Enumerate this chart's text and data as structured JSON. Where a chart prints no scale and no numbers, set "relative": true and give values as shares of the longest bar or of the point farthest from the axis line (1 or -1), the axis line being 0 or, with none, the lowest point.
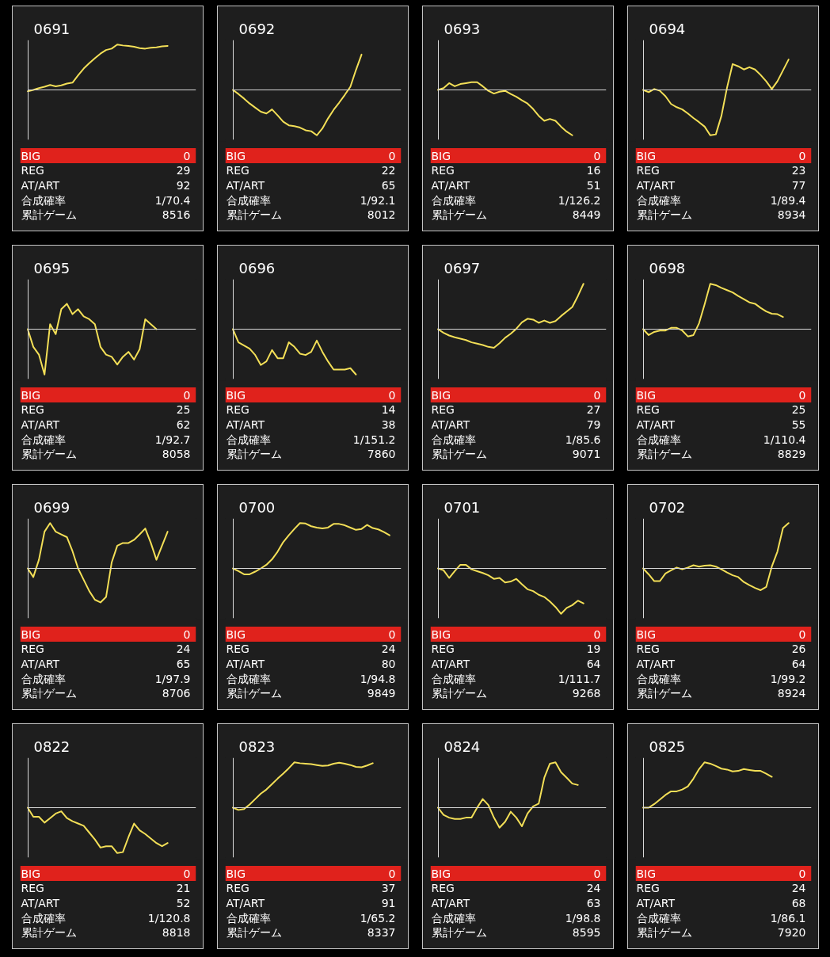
{
  "chart_data": [
    {
      "type": "line",
      "relative": true,
      "title": "0691",
      "categories": [
        null,
        null,
        null,
        null,
        null,
        null,
        null,
        null,
        null,
        null,
        null,
        null,
        null,
        null,
        null,
        null,
        null,
        null,
        null,
        null,
        null,
        null,
        null,
        null,
        null,
        null,
        null,
        null,
        null,
        null,
        null
      ],
      "series": [
        {
          "color": "#f3df57",
          "values": [
            -0.03,
            0,
            0.04,
            0.07,
            0.11,
            0.08,
            0.1,
            0.14,
            0.16,
            0.32,
            0.47,
            0.59,
            0.7,
            0.8,
            0.88,
            0.91,
            1,
            0.98,
            0.97,
            0.95,
            0.92,
            0.91,
            0.93,
            0.94,
            0.96,
            0.97,
            null,
            null,
            null,
            null,
            null
          ]
        }
      ],
      "annotations": [
        "BIG",
        "0",
        "REG",
        "29",
        "AT/ART",
        "92",
        "合成確率",
        "1/70.4",
        "累計ゲーム",
        "8516"
      ]
    },
    {
      "type": "line",
      "relative": true,
      "title": "0692",
      "categories": [
        null,
        null,
        null,
        null,
        null,
        null,
        null,
        null,
        null,
        null,
        null,
        null,
        null,
        null,
        null,
        null,
        null,
        null,
        null,
        null,
        null,
        null,
        null,
        null,
        null,
        null,
        null,
        null,
        null,
        null,
        null
      ],
      "series": [
        {
          "color": "#f3df57",
          "values": [
            0,
            -0.09,
            -0.19,
            -0.3,
            -0.39,
            -0.48,
            -0.52,
            -0.43,
            -0.56,
            -0.7,
            -0.78,
            -0.8,
            -0.83,
            -0.89,
            -0.91,
            -1,
            -0.85,
            -0.63,
            -0.44,
            -0.28,
            -0.11,
            0.07,
            0.44,
            0.78,
            null,
            null,
            null,
            null,
            null,
            null,
            null
          ]
        }
      ],
      "annotations": [
        "BIG",
        "0",
        "REG",
        "22",
        "AT/ART",
        "65",
        "合成確率",
        "1/92.1",
        "累計ゲーム",
        "8012"
      ]
    },
    {
      "type": "line",
      "relative": true,
      "title": "0693",
      "categories": [
        null,
        null,
        null,
        null,
        null,
        null,
        null,
        null,
        null,
        null,
        null,
        null,
        null,
        null,
        null,
        null,
        null,
        null,
        null,
        null,
        null,
        null,
        null,
        null,
        null,
        null,
        null,
        null,
        null,
        null,
        null
      ],
      "series": [
        {
          "color": "#f3df57",
          "values": [
            0,
            0.04,
            0.15,
            0.08,
            0.13,
            0.15,
            0.17,
            0.17,
            0.08,
            -0.02,
            -0.08,
            -0.04,
            -0.02,
            -0.09,
            -0.15,
            -0.23,
            -0.3,
            -0.42,
            -0.57,
            -0.68,
            -0.64,
            -0.68,
            -0.81,
            -0.92,
            -1,
            null,
            null,
            null,
            null,
            null,
            null
          ]
        }
      ],
      "annotations": [
        "BIG",
        "0",
        "REG",
        "16",
        "AT/ART",
        "51",
        "合成確率",
        "1/126.2",
        "累計ゲーム",
        "8449"
      ]
    },
    {
      "type": "line",
      "relative": true,
      "title": "0694",
      "categories": [
        null,
        null,
        null,
        null,
        null,
        null,
        null,
        null,
        null,
        null,
        null,
        null,
        null,
        null,
        null,
        null,
        null,
        null,
        null,
        null,
        null,
        null,
        null,
        null,
        null,
        null,
        null,
        null,
        null,
        null,
        null
      ],
      "series": [
        {
          "color": "#f3df57",
          "values": [
            0,
            -0.05,
            0.02,
            -0.02,
            -0.14,
            -0.31,
            -0.38,
            -0.43,
            -0.52,
            -0.62,
            -0.71,
            -0.81,
            -1,
            -0.98,
            -0.57,
            0.05,
            0.57,
            0.52,
            0.45,
            0.5,
            0.45,
            0.33,
            0.19,
            0.02,
            0.19,
            0.43,
            0.67,
            null,
            null,
            null,
            null
          ]
        }
      ],
      "annotations": [
        "BIG",
        "0",
        "REG",
        "23",
        "AT/ART",
        "77",
        "合成確率",
        "1/89.4",
        "累計ゲーム",
        "8934"
      ]
    },
    {
      "type": "line",
      "relative": true,
      "title": "0695",
      "categories": [
        null,
        null,
        null,
        null,
        null,
        null,
        null,
        null,
        null,
        null,
        null,
        null,
        null,
        null,
        null,
        null,
        null,
        null,
        null,
        null,
        null,
        null,
        null,
        null,
        null,
        null,
        null,
        null,
        null,
        null,
        null
      ],
      "series": [
        {
          "color": "#f3df57",
          "values": [
            0,
            -0.39,
            -0.56,
            -1,
            0.11,
            -0.11,
            0.44,
            0.56,
            0.33,
            0.44,
            0.28,
            0.22,
            0.11,
            -0.39,
            -0.56,
            -0.61,
            -0.78,
            -0.61,
            -0.5,
            -0.67,
            -0.44,
            0.22,
            0.11,
            0,
            null,
            null,
            null,
            null,
            null,
            null,
            null
          ]
        }
      ],
      "annotations": [
        "BIG",
        "0",
        "REG",
        "25",
        "AT/ART",
        "62",
        "合成確率",
        "1/92.7",
        "累計ゲーム",
        "8058"
      ]
    },
    {
      "type": "line",
      "relative": true,
      "title": "0696",
      "categories": [
        null,
        null,
        null,
        null,
        null,
        null,
        null,
        null,
        null,
        null,
        null,
        null,
        null,
        null,
        null,
        null,
        null,
        null,
        null,
        null,
        null,
        null,
        null,
        null,
        null,
        null,
        null,
        null,
        null,
        null,
        null
      ],
      "series": [
        {
          "color": "#f3df57",
          "values": [
            0,
            -0.29,
            -0.36,
            -0.43,
            -0.57,
            -0.79,
            -0.71,
            -0.46,
            -0.64,
            -0.64,
            -0.29,
            -0.39,
            -0.54,
            -0.57,
            -0.5,
            -0.25,
            -0.5,
            -0.71,
            -0.89,
            -0.89,
            -0.89,
            -0.86,
            -1,
            null,
            null,
            null,
            null,
            null,
            null,
            null,
            null
          ]
        }
      ],
      "annotations": [
        "BIG",
        "0",
        "REG",
        "14",
        "AT/ART",
        "38",
        "合成確率",
        "1/151.2",
        "累計ゲーム",
        "7860"
      ]
    },
    {
      "type": "line",
      "relative": true,
      "title": "0697",
      "categories": [
        null,
        null,
        null,
        null,
        null,
        null,
        null,
        null,
        null,
        null,
        null,
        null,
        null,
        null,
        null,
        null,
        null,
        null,
        null,
        null,
        null,
        null,
        null,
        null,
        null,
        null,
        null,
        null,
        null,
        null,
        null
      ],
      "series": [
        {
          "color": "#f3df57",
          "values": [
            0,
            -0.08,
            -0.14,
            -0.18,
            -0.21,
            -0.24,
            -0.29,
            -0.32,
            -0.35,
            -0.39,
            -0.41,
            -0.31,
            -0.19,
            -0.1,
            0.01,
            0.15,
            0.23,
            0.21,
            0.14,
            0.19,
            0.14,
            0.18,
            0.29,
            0.39,
            0.49,
            0.73,
            1,
            null,
            null,
            null,
            null
          ]
        }
      ],
      "annotations": [
        "BIG",
        "0",
        "REG",
        "27",
        "AT/ART",
        "79",
        "合成確率",
        "1/85.6",
        "累計ゲーム",
        "9071"
      ]
    },
    {
      "type": "line",
      "relative": true,
      "title": "0698",
      "categories": [
        null,
        null,
        null,
        null,
        null,
        null,
        null,
        null,
        null,
        null,
        null,
        null,
        null,
        null,
        null,
        null,
        null,
        null,
        null,
        null,
        null,
        null,
        null,
        null,
        null,
        null,
        null,
        null,
        null,
        null,
        null
      ],
      "series": [
        {
          "color": "#f3df57",
          "values": [
            0,
            -0.13,
            -0.06,
            -0.03,
            -0.03,
            0.03,
            0.03,
            -0.03,
            -0.16,
            -0.13,
            0.13,
            0.55,
            1,
            0.97,
            0.91,
            0.86,
            0.81,
            0.73,
            0.66,
            0.59,
            0.56,
            0.47,
            0.39,
            0.34,
            0.33,
            0.27,
            null,
            null,
            null,
            null,
            null
          ]
        }
      ],
      "annotations": [
        "BIG",
        "0",
        "REG",
        "25",
        "AT/ART",
        "55",
        "合成確率",
        "1/110.4",
        "累計ゲーム",
        "8829"
      ]
    },
    {
      "type": "line",
      "relative": true,
      "title": "0699",
      "categories": [
        null,
        null,
        null,
        null,
        null,
        null,
        null,
        null,
        null,
        null,
        null,
        null,
        null,
        null,
        null,
        null,
        null,
        null,
        null,
        null,
        null,
        null,
        null,
        null,
        null,
        null,
        null,
        null,
        null,
        null,
        null
      ],
      "series": [
        {
          "color": "#f3df57",
          "values": [
            0,
            -0.19,
            0.19,
            0.81,
            1,
            0.81,
            0.75,
            0.69,
            0.38,
            0,
            -0.25,
            -0.5,
            -0.69,
            -0.75,
            -0.63,
            0.13,
            0.5,
            0.56,
            0.56,
            0.63,
            0.75,
            0.88,
            0.56,
            0.19,
            0.5,
            0.81,
            null,
            null,
            null,
            null,
            null
          ]
        }
      ],
      "annotations": [
        "BIG",
        "0",
        "REG",
        "24",
        "AT/ART",
        "65",
        "合成確率",
        "1/97.9",
        "累計ゲーム",
        "8706"
      ]
    },
    {
      "type": "line",
      "relative": true,
      "title": "0700",
      "categories": [
        null,
        null,
        null,
        null,
        null,
        null,
        null,
        null,
        null,
        null,
        null,
        null,
        null,
        null,
        null,
        null,
        null,
        null,
        null,
        null,
        null,
        null,
        null,
        null,
        null,
        null,
        null,
        null,
        null,
        null,
        null
      ],
      "series": [
        {
          "color": "#f3df57",
          "values": [
            0,
            -0.06,
            -0.13,
            -0.13,
            -0.07,
            0,
            0.08,
            0.2,
            0.37,
            0.58,
            0.73,
            0.87,
            1,
            0.99,
            0.93,
            0.9,
            0.88,
            0.9,
            0.98,
            0.98,
            0.95,
            0.9,
            0.85,
            0.87,
            0.96,
            0.89,
            0.86,
            0.8,
            0.73,
            null,
            null
          ]
        }
      ],
      "annotations": [
        "BIG",
        "0",
        "REG",
        "24",
        "AT/ART",
        "80",
        "合成確率",
        "1/94.8",
        "累計ゲーム",
        "9849"
      ]
    },
    {
      "type": "line",
      "relative": true,
      "title": "0701",
      "categories": [
        null,
        null,
        null,
        null,
        null,
        null,
        null,
        null,
        null,
        null,
        null,
        null,
        null,
        null,
        null,
        null,
        null,
        null,
        null,
        null,
        null,
        null,
        null,
        null,
        null,
        null,
        null,
        null,
        null,
        null,
        null
      ],
      "series": [
        {
          "color": "#f3df57",
          "values": [
            0,
            -0.04,
            -0.21,
            -0.06,
            0.08,
            0.08,
            -0.02,
            -0.06,
            -0.1,
            -0.15,
            -0.23,
            -0.21,
            -0.31,
            -0.29,
            -0.23,
            -0.35,
            -0.46,
            -0.5,
            -0.58,
            -0.63,
            -0.73,
            -0.85,
            -1,
            -0.87,
            -0.81,
            -0.71,
            -0.77,
            null,
            null,
            null,
            null
          ]
        }
      ],
      "annotations": [
        "BIG",
        "0",
        "REG",
        "19",
        "AT/ART",
        "64",
        "合成確率",
        "1/111.7",
        "累計ゲーム",
        "9268"
      ]
    },
    {
      "type": "line",
      "relative": true,
      "title": "0702",
      "categories": [
        null,
        null,
        null,
        null,
        null,
        null,
        null,
        null,
        null,
        null,
        null,
        null,
        null,
        null,
        null,
        null,
        null,
        null,
        null,
        null,
        null,
        null,
        null,
        null,
        null,
        null,
        null,
        null,
        null,
        null,
        null
      ],
      "series": [
        {
          "color": "#f3df57",
          "values": [
            0,
            -0.13,
            -0.28,
            -0.28,
            -0.11,
            -0.04,
            0.02,
            -0.02,
            0.02,
            0.07,
            0.04,
            0.06,
            0.07,
            0.04,
            -0.02,
            -0.09,
            -0.15,
            -0.19,
            -0.3,
            -0.37,
            -0.43,
            -0.48,
            -0.41,
            0.04,
            0.37,
            0.89,
            1,
            null,
            null,
            null,
            null
          ]
        }
      ],
      "annotations": [
        "BIG",
        "0",
        "REG",
        "26",
        "AT/ART",
        "64",
        "合成確率",
        "1/99.2",
        "累計ゲーム",
        "8924"
      ]
    },
    {
      "type": "line",
      "relative": true,
      "title": "0822",
      "categories": [
        null,
        null,
        null,
        null,
        null,
        null,
        null,
        null,
        null,
        null,
        null,
        null,
        null,
        null,
        null,
        null,
        null,
        null,
        null,
        null,
        null,
        null,
        null,
        null,
        null,
        null,
        null,
        null,
        null,
        null,
        null
      ],
      "series": [
        {
          "color": "#f3df57",
          "values": [
            0,
            -0.2,
            -0.2,
            -0.33,
            -0.23,
            -0.13,
            -0.08,
            -0.23,
            -0.3,
            -0.35,
            -0.4,
            -0.55,
            -0.7,
            -0.88,
            -0.85,
            -0.85,
            -1,
            -0.98,
            -0.65,
            -0.35,
            -0.5,
            -0.58,
            -0.68,
            -0.78,
            -0.85,
            -0.78,
            null,
            null,
            null,
            null,
            null
          ]
        }
      ],
      "annotations": [
        "BIG",
        "0",
        "REG",
        "21",
        "AT/ART",
        "52",
        "合成確率",
        "1/120.8",
        "累計ゲーム",
        "8818"
      ]
    },
    {
      "type": "line",
      "relative": true,
      "title": "0823",
      "categories": [
        null,
        null,
        null,
        null,
        null,
        null,
        null,
        null,
        null,
        null,
        null,
        null,
        null,
        null,
        null,
        null,
        null,
        null,
        null,
        null,
        null,
        null,
        null,
        null,
        null,
        null,
        null,
        null,
        null,
        null,
        null
      ],
      "series": [
        {
          "color": "#f3df57",
          "values": [
            0,
            -0.05,
            -0.03,
            0.07,
            0.19,
            0.31,
            0.4,
            0.52,
            0.64,
            0.75,
            0.87,
            1,
            0.98,
            0.97,
            0.96,
            0.94,
            0.92,
            0.93,
            0.97,
            0.99,
            0.97,
            0.94,
            0.9,
            0.89,
            0.93,
            0.98,
            null,
            null,
            null,
            null,
            null
          ]
        }
      ],
      "annotations": [
        "BIG",
        "0",
        "REG",
        "37",
        "AT/ART",
        "91",
        "合成確率",
        "1/65.2",
        "累計ゲーム",
        "8337"
      ]
    },
    {
      "type": "line",
      "relative": true,
      "title": "0824",
      "categories": [
        null,
        null,
        null,
        null,
        null,
        null,
        null,
        null,
        null,
        null,
        null,
        null,
        null,
        null,
        null,
        null,
        null,
        null,
        null,
        null,
        null,
        null,
        null,
        null,
        null,
        null,
        null,
        null,
        null,
        null,
        null
      ],
      "series": [
        {
          "color": "#f3df57",
          "values": [
            0,
            -0.16,
            -0.22,
            -0.25,
            -0.25,
            -0.22,
            -0.22,
            0,
            0.19,
            0.06,
            -0.22,
            -0.44,
            -0.31,
            -0.09,
            -0.22,
            -0.41,
            -0.13,
            0.03,
            0.09,
            0.66,
            0.97,
            1,
            0.78,
            0.66,
            0.53,
            0.5,
            null,
            null,
            null,
            null,
            null
          ]
        }
      ],
      "annotations": [
        "BIG",
        "0",
        "REG",
        "24",
        "AT/ART",
        "63",
        "合成確率",
        "1/98.8",
        "累計ゲーム",
        "8595"
      ]
    },
    {
      "type": "line",
      "relative": true,
      "title": "0825",
      "categories": [
        null,
        null,
        null,
        null,
        null,
        null,
        null,
        null,
        null,
        null,
        null,
        null,
        null,
        null,
        null,
        null,
        null,
        null,
        null,
        null,
        null,
        null,
        null,
        null,
        null,
        null,
        null,
        null,
        null,
        null,
        null
      ],
      "series": [
        {
          "color": "#f3df57",
          "values": [
            0,
            0,
            0.08,
            0.18,
            0.28,
            0.36,
            0.36,
            0.4,
            0.47,
            0.64,
            0.85,
            1,
            0.97,
            0.92,
            0.86,
            0.84,
            0.8,
            0.81,
            0.85,
            0.83,
            0.81,
            0.81,
            0.75,
            0.68,
            null,
            null,
            null,
            null,
            null,
            null,
            null
          ]
        }
      ],
      "annotations": [
        "BIG",
        "0",
        "REG",
        "24",
        "AT/ART",
        "68",
        "合成確率",
        "1/86.1",
        "累計ゲーム",
        "7920"
      ]
    }
  ]
}
